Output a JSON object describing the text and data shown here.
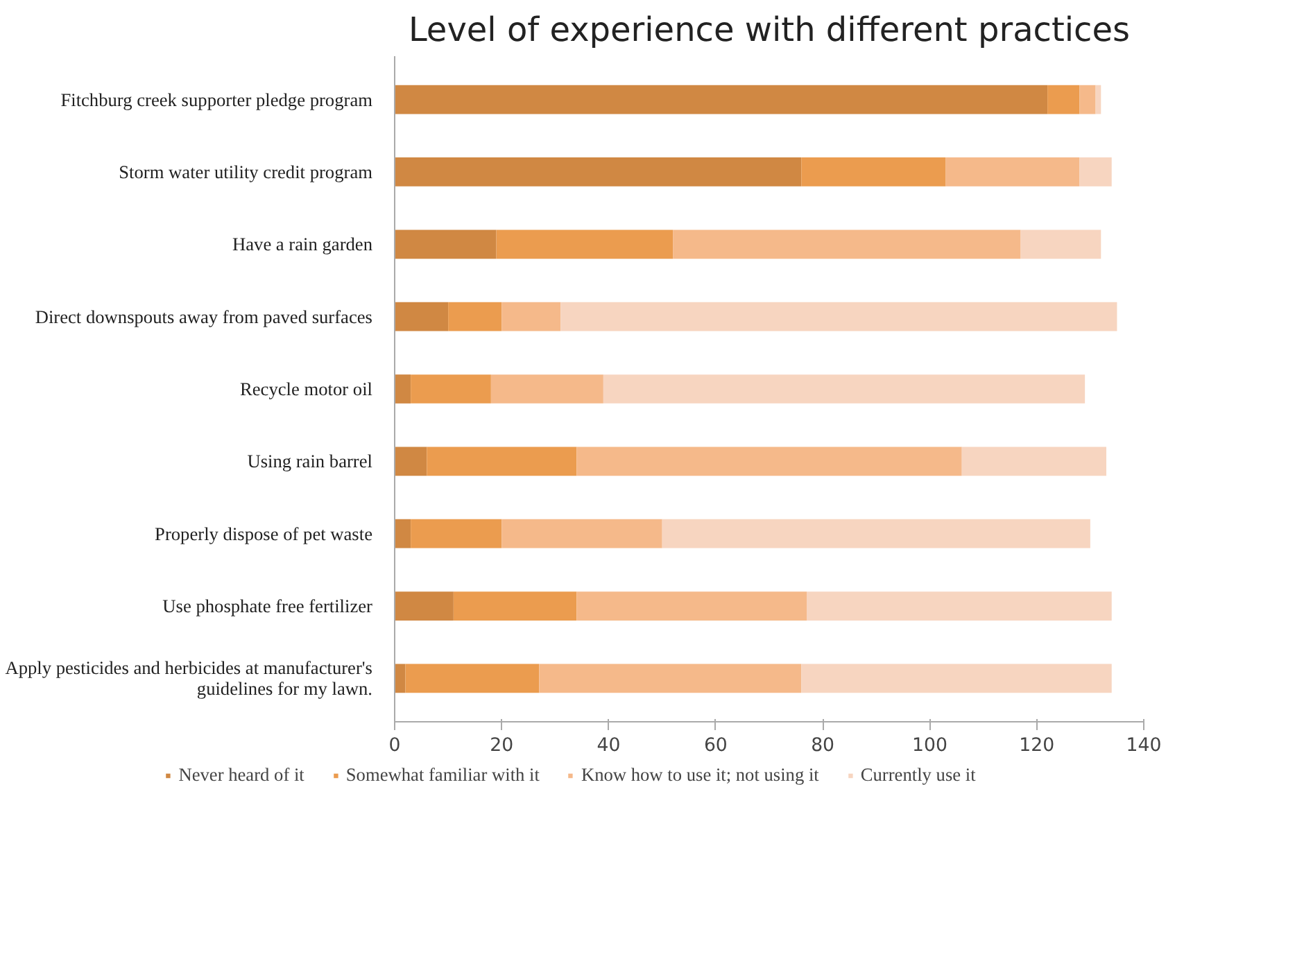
{
  "chart_data": {
    "type": "bar",
    "orientation": "horizontal",
    "stacked": true,
    "title": "Level of experience with different practices",
    "categories": [
      "Fitchburg creek supporter pledge program",
      "Storm water utility credit program",
      "Have a rain garden",
      "Direct downspouts away from paved surfaces",
      "Recycle motor oil",
      "Using rain barrel",
      "Properly dispose of pet waste",
      "Use phosphate free fertilizer",
      "Apply pesticides and herbicides at manufacturer's guidelines for my lawn."
    ],
    "series": [
      {
        "name": "Never heard of it",
        "color": "#d08843",
        "values": [
          122,
          76,
          19,
          10,
          3,
          6,
          3,
          11,
          2
        ]
      },
      {
        "name": "Somewhat familiar with it",
        "color": "#eb9c4f",
        "values": [
          6,
          27,
          33,
          10,
          15,
          28,
          17,
          23,
          25
        ]
      },
      {
        "name": "Know how to use it; not using it",
        "color": "#f5b98a",
        "values": [
          3,
          25,
          65,
          11,
          21,
          72,
          30,
          43,
          49
        ]
      },
      {
        "name": "Currently use it",
        "color": "#f7d5c0",
        "values": [
          1,
          6,
          15,
          104,
          90,
          27,
          80,
          57,
          58
        ]
      }
    ],
    "xlim": [
      0,
      140
    ],
    "xticks": [
      0,
      20,
      40,
      60,
      80,
      100,
      120,
      140
    ],
    "grid": false,
    "legend": "bottom"
  }
}
